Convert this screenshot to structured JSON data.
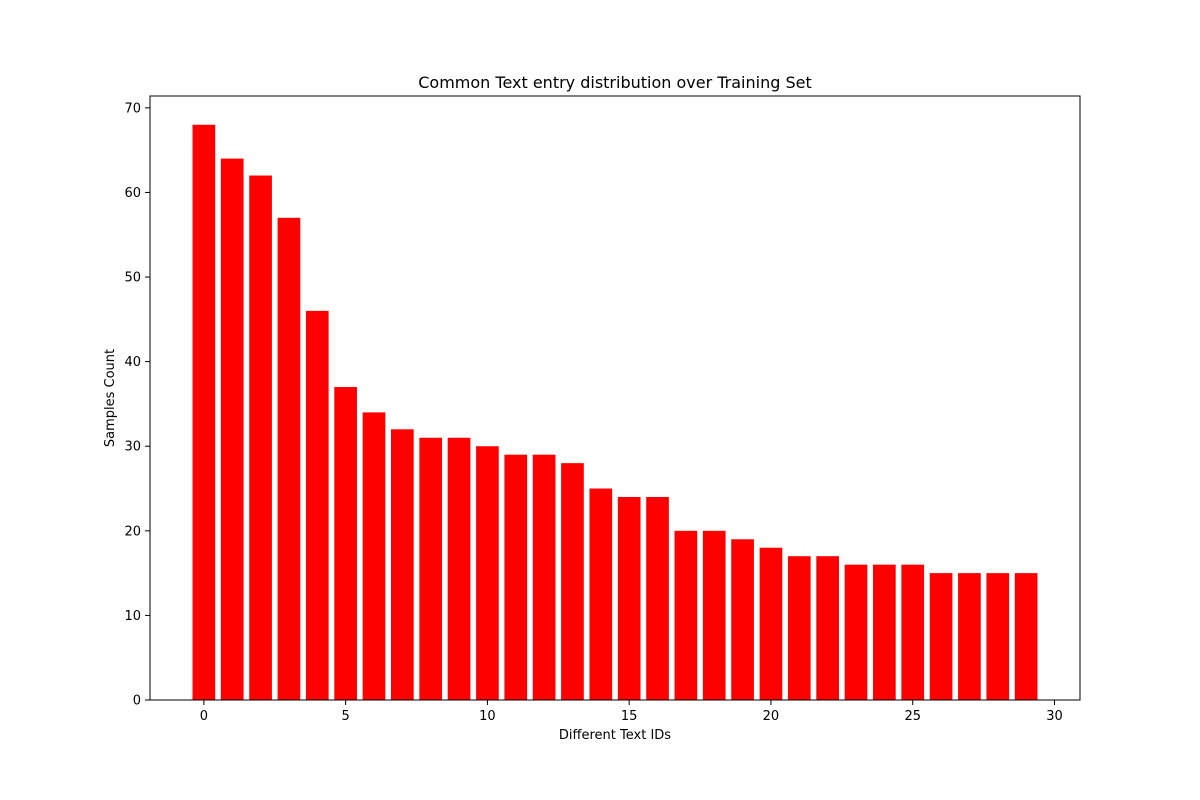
{
  "chart_data": {
    "type": "bar",
    "title": "Common Text entry distribution over Training Set",
    "xlabel": "Different Text IDs",
    "ylabel": "Samples Count",
    "x": [
      0,
      1,
      2,
      3,
      4,
      5,
      6,
      7,
      8,
      9,
      10,
      11,
      12,
      13,
      14,
      15,
      16,
      17,
      18,
      19,
      20,
      21,
      22,
      23,
      24,
      25,
      26,
      27,
      28,
      29
    ],
    "values": [
      68,
      64,
      62,
      57,
      46,
      37,
      34,
      32,
      31,
      31,
      30,
      29,
      29,
      28,
      25,
      24,
      24,
      20,
      20,
      19,
      18,
      17,
      17,
      16,
      16,
      16,
      15,
      15,
      15,
      15
    ],
    "xlim": [
      -1.9,
      30.9
    ],
    "ylim": [
      0,
      71.4
    ],
    "xticks": [
      0,
      5,
      10,
      15,
      20,
      25,
      30
    ],
    "yticks": [
      0,
      10,
      20,
      30,
      40,
      50,
      60,
      70
    ],
    "bar_color": "#ff0000",
    "grid": false,
    "legend": "none"
  }
}
